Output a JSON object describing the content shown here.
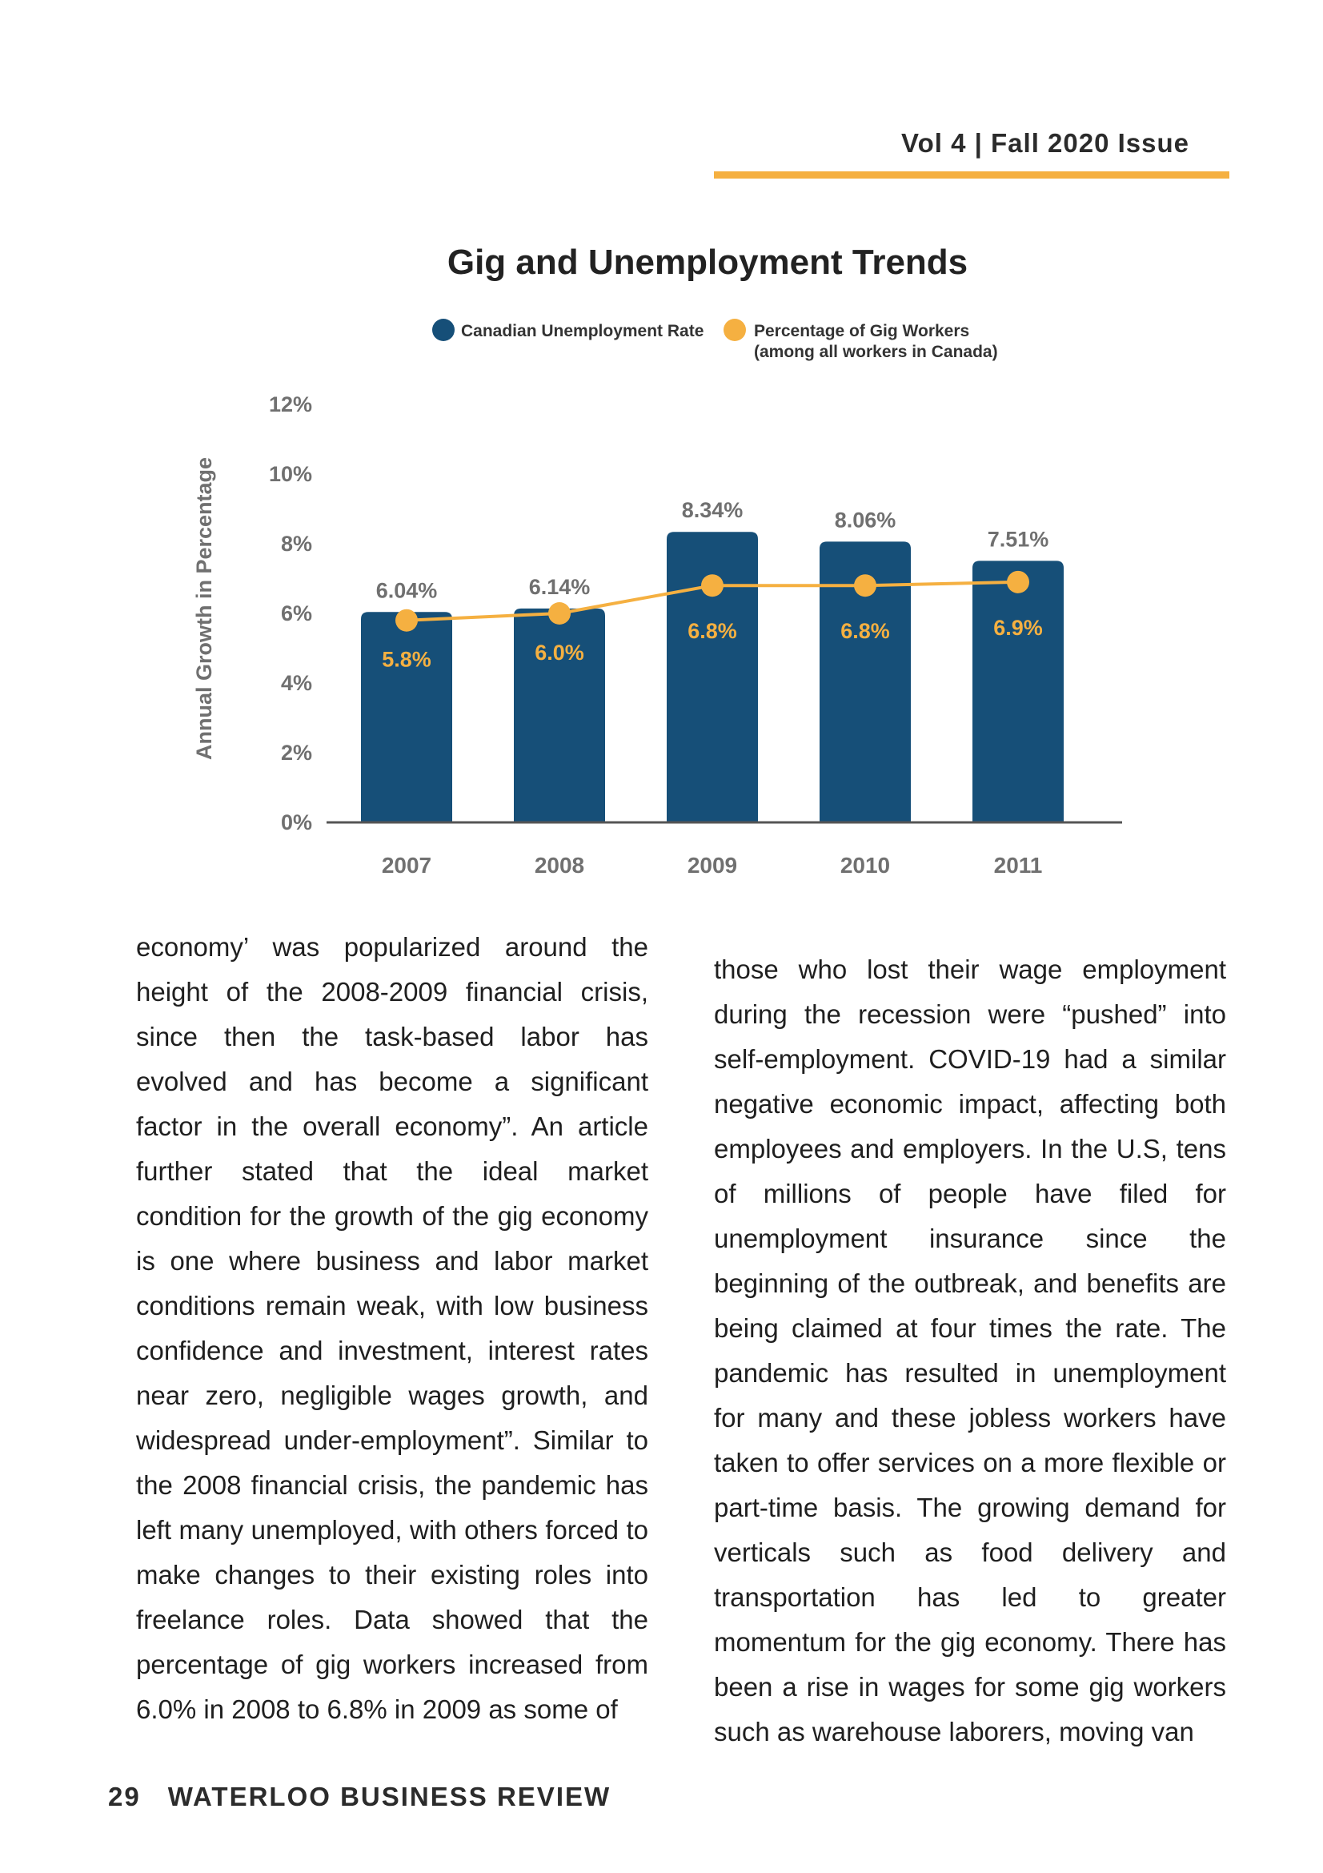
{
  "header": {
    "issue": "Vol 4 | Fall 2020 Issue"
  },
  "colors": {
    "bar": "#164f78",
    "line": "#f5b041",
    "axis_text": "#707070",
    "accent_rule": "#f5b041"
  },
  "chart_data": {
    "type": "bar",
    "title": "Gig and Unemployment Trends",
    "ylabel": "Annual Growth in Percentage",
    "xlabel": "",
    "categories": [
      "2007",
      "2008",
      "2009",
      "2010",
      "2011"
    ],
    "ylim": [
      0,
      12
    ],
    "yticks": [
      "0%",
      "2%",
      "4%",
      "6%",
      "8%",
      "10%",
      "12%"
    ],
    "legend_position": "top",
    "series": [
      {
        "name": "Canadian Unemployment Rate",
        "type": "bar",
        "values": [
          6.04,
          6.14,
          8.34,
          8.06,
          7.51
        ],
        "labels": [
          "6.04%",
          "6.14%",
          "8.34%",
          "8.06%",
          "7.51%"
        ]
      },
      {
        "name": "Percentage of Gig Workers",
        "name_note": "(among all workers in Canada)",
        "type": "line",
        "values": [
          5.8,
          6.0,
          6.8,
          6.8,
          6.9
        ],
        "labels": [
          "5.8%",
          "6.0%",
          "6.8%",
          "6.8%",
          "6.9%"
        ]
      }
    ],
    "grid": false
  },
  "body": {
    "left": "economy’ was popularized around the height of the 2008-2009 financial crisis, since then the task-based labor has evolved and has become a significant factor in the overall economy”. An article further stated that the ideal market condition for the growth of the gig economy is one where business and labor market conditions remain weak, with low business confidence and investment, interest rates near zero, negligible wages growth, and widespread under-employment”. Similar to the 2008 financial crisis, the pandemic has left many unemployed, with others forced to make changes to their existing roles into freelance roles. Data showed that the percentage of gig workers increased from 6.0% in 2008 to 6.8% in 2009 as some of",
    "right": "those who lost their wage employment during the recession were “pushed” into self-employment. COVID-19 had a similar negative economic impact, affecting both employees and employers. In the U.S, tens of millions of people have filed for unemployment insurance since the beginning of the outbreak, and benefits are being claimed at four times the rate. The pandemic has resulted in unemployment for many and these jobless workers have taken to offer services on a more flexible or part-time basis. The growing demand for verticals such as food delivery and transportation has led to greater momentum for the gig economy. There has been a rise in wages for some gig workers such as warehouse laborers, moving van"
  },
  "footer": {
    "page_number": "29",
    "publication": "WATERLOO BUSINESS REVIEW"
  }
}
